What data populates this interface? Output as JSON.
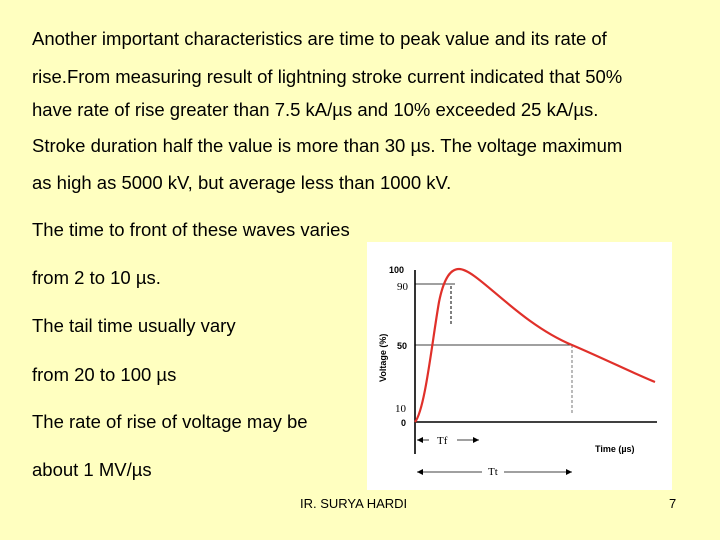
{
  "paragraph_lines": [
    "Another important characteristics are time to peak value and its rate of",
    "rise.From measuring result of lightning stroke current indicated that 50%",
    "have rate of rise greater than 7.5 kA/µs  and 10% exceeded 25 kA/µs.",
    "Stroke duration  half the value is more than 30 µs. The voltage maximum",
    "as high as 5000 kV, but average less  than 1000 kV."
  ],
  "side_lines": [
    "The time to front of these waves varies",
    "from 2 to 10 µs.",
    "The tail time usually vary",
    " from 20 to 100 µs",
    "The rate of rise of voltage may be",
    " about 1 MV/µs"
  ],
  "figure": {
    "ylabel": "Voltage (%)",
    "xlabel": "Time (µs)",
    "tick_100": "100",
    "tick_90": "90",
    "tick_50": "50",
    "tick_10": "10",
    "tick_0": "0",
    "tf_label": "Tf",
    "tt_label": "Tt",
    "curve_color": "#e0302a",
    "axis_color": "#000000"
  },
  "footer": {
    "author": "IR. SURYA HARDI",
    "page_number": "7"
  }
}
